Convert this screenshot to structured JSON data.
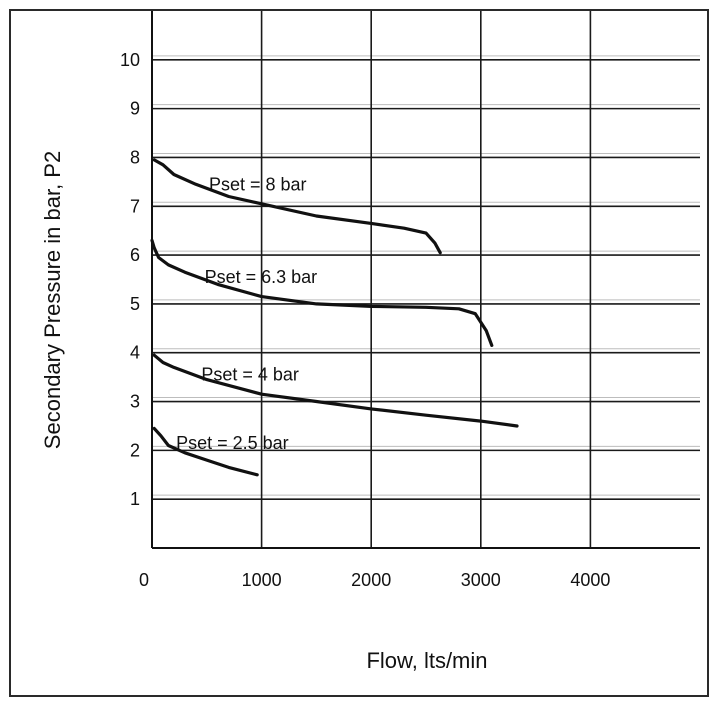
{
  "chart_data": {
    "type": "line",
    "title": "",
    "xlabel": "Flow, lts/min",
    "ylabel": "Secondary Pressure in bar, P2",
    "xlim": [
      0,
      5000
    ],
    "ylim": [
      0,
      11
    ],
    "x_ticks": [
      0,
      1000,
      2000,
      3000,
      4000
    ],
    "y_ticks": [
      1,
      2,
      3,
      4,
      5,
      6,
      7,
      8,
      9,
      10
    ],
    "grid": true,
    "legend": "none",
    "series": [
      {
        "name": "Pset = 8 bar",
        "points": [
          [
            20,
            7.95
          ],
          [
            100,
            7.85
          ],
          [
            200,
            7.65
          ],
          [
            400,
            7.45
          ],
          [
            700,
            7.2
          ],
          [
            1000,
            7.05
          ],
          [
            1500,
            6.8
          ],
          [
            2000,
            6.65
          ],
          [
            2300,
            6.55
          ],
          [
            2500,
            6.45
          ],
          [
            2580,
            6.25
          ],
          [
            2630,
            6.05
          ]
        ]
      },
      {
        "name": "Pset = 6.3 bar",
        "points": [
          [
            0,
            6.3
          ],
          [
            20,
            6.15
          ],
          [
            60,
            5.95
          ],
          [
            150,
            5.8
          ],
          [
            300,
            5.65
          ],
          [
            600,
            5.4
          ],
          [
            1000,
            5.15
          ],
          [
            1500,
            5.0
          ],
          [
            2000,
            4.95
          ],
          [
            2500,
            4.93
          ],
          [
            2800,
            4.9
          ],
          [
            2950,
            4.8
          ],
          [
            3050,
            4.45
          ],
          [
            3100,
            4.15
          ]
        ]
      },
      {
        "name": "Pset = 4 bar",
        "points": [
          [
            20,
            3.95
          ],
          [
            100,
            3.8
          ],
          [
            200,
            3.7
          ],
          [
            500,
            3.45
          ],
          [
            1000,
            3.15
          ],
          [
            1500,
            3.0
          ],
          [
            2000,
            2.85
          ],
          [
            2500,
            2.72
          ],
          [
            3000,
            2.6
          ],
          [
            3330,
            2.5
          ]
        ]
      },
      {
        "name": "Pset = 2.5 bar",
        "points": [
          [
            20,
            2.45
          ],
          [
            80,
            2.3
          ],
          [
            150,
            2.1
          ],
          [
            300,
            1.95
          ],
          [
            500,
            1.8
          ],
          [
            700,
            1.65
          ],
          [
            960,
            1.5
          ]
        ]
      }
    ],
    "annotations": [
      {
        "text": "Pset = 8 bar",
        "x": 520,
        "y": 7.45
      },
      {
        "text": "Pset = 6.3 bar",
        "x": 480,
        "y": 5.55
      },
      {
        "text": "Pset = 4 bar",
        "x": 450,
        "y": 3.55
      },
      {
        "text": "Pset = 2.5 bar",
        "x": 220,
        "y": 2.15
      }
    ]
  }
}
